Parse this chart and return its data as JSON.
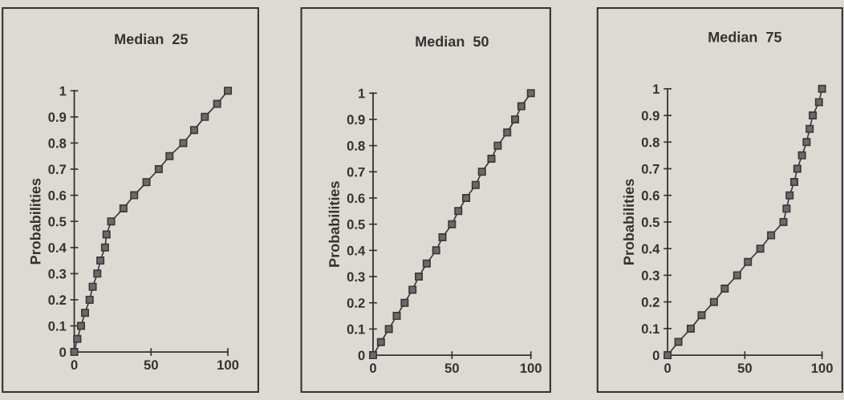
{
  "chart_data": [
    {
      "type": "line",
      "title": "Median  25",
      "ylabel": "Probabilities",
      "xlim": [
        0,
        100
      ],
      "ylim": [
        0,
        1
      ],
      "xticks": [
        0,
        50,
        100
      ],
      "yticks": [
        0,
        0.1,
        0.2,
        0.3,
        0.4,
        0.5,
        0.6,
        0.7,
        0.8,
        0.9,
        1
      ],
      "marker": "square",
      "grid": false,
      "series": [
        {
          "color": "#3a3a3a",
          "x": [
            0,
            2,
            4.4,
            7,
            10,
            12,
            15,
            17,
            20,
            21,
            24,
            32,
            39,
            47,
            55,
            62,
            71,
            78,
            85,
            93,
            100
          ],
          "values": [
            0,
            0.05,
            0.1,
            0.15,
            0.2,
            0.25,
            0.3,
            0.35,
            0.4,
            0.45,
            0.5,
            0.55,
            0.6,
            0.65,
            0.7,
            0.75,
            0.8,
            0.85,
            0.9,
            0.95,
            1
          ]
        }
      ]
    },
    {
      "type": "line",
      "title": "Median  50",
      "ylabel": "Probabilities",
      "xlim": [
        0,
        100
      ],
      "ylim": [
        0,
        1
      ],
      "xticks": [
        0,
        50,
        100
      ],
      "yticks": [
        0,
        0.1,
        0.2,
        0.3,
        0.4,
        0.5,
        0.6,
        0.7,
        0.8,
        0.9,
        1
      ],
      "marker": "square",
      "grid": false,
      "series": [
        {
          "color": "#3a3a3a",
          "x": [
            0,
            5,
            10,
            15,
            20,
            25,
            29,
            34,
            40,
            44,
            50,
            54,
            59,
            65,
            69,
            75,
            79,
            85,
            90,
            94,
            100
          ],
          "values": [
            0,
            0.05,
            0.1,
            0.15,
            0.2,
            0.25,
            0.3,
            0.35,
            0.4,
            0.45,
            0.5,
            0.55,
            0.6,
            0.65,
            0.7,
            0.75,
            0.8,
            0.85,
            0.9,
            0.95,
            1
          ]
        }
      ]
    },
    {
      "type": "line",
      "title": "Median  75",
      "ylabel": "Probabilities",
      "xlim": [
        0,
        100
      ],
      "ylim": [
        0,
        1
      ],
      "xticks": [
        0,
        50,
        100
      ],
      "yticks": [
        0,
        0.1,
        0.2,
        0.3,
        0.4,
        0.5,
        0.6,
        0.7,
        0.8,
        0.9,
        1
      ],
      "marker": "square",
      "grid": false,
      "series": [
        {
          "color": "#3a3a3a",
          "x": [
            0,
            7,
            15,
            22,
            30,
            37,
            45,
            52,
            60,
            67,
            75,
            77,
            79,
            82,
            84,
            87,
            90,
            92,
            94,
            98,
            100
          ],
          "values": [
            0,
            0.05,
            0.1,
            0.15,
            0.2,
            0.25,
            0.3,
            0.35,
            0.4,
            0.45,
            0.5,
            0.55,
            0.6,
            0.65,
            0.7,
            0.75,
            0.8,
            0.85,
            0.9,
            0.95,
            1
          ]
        }
      ]
    }
  ]
}
